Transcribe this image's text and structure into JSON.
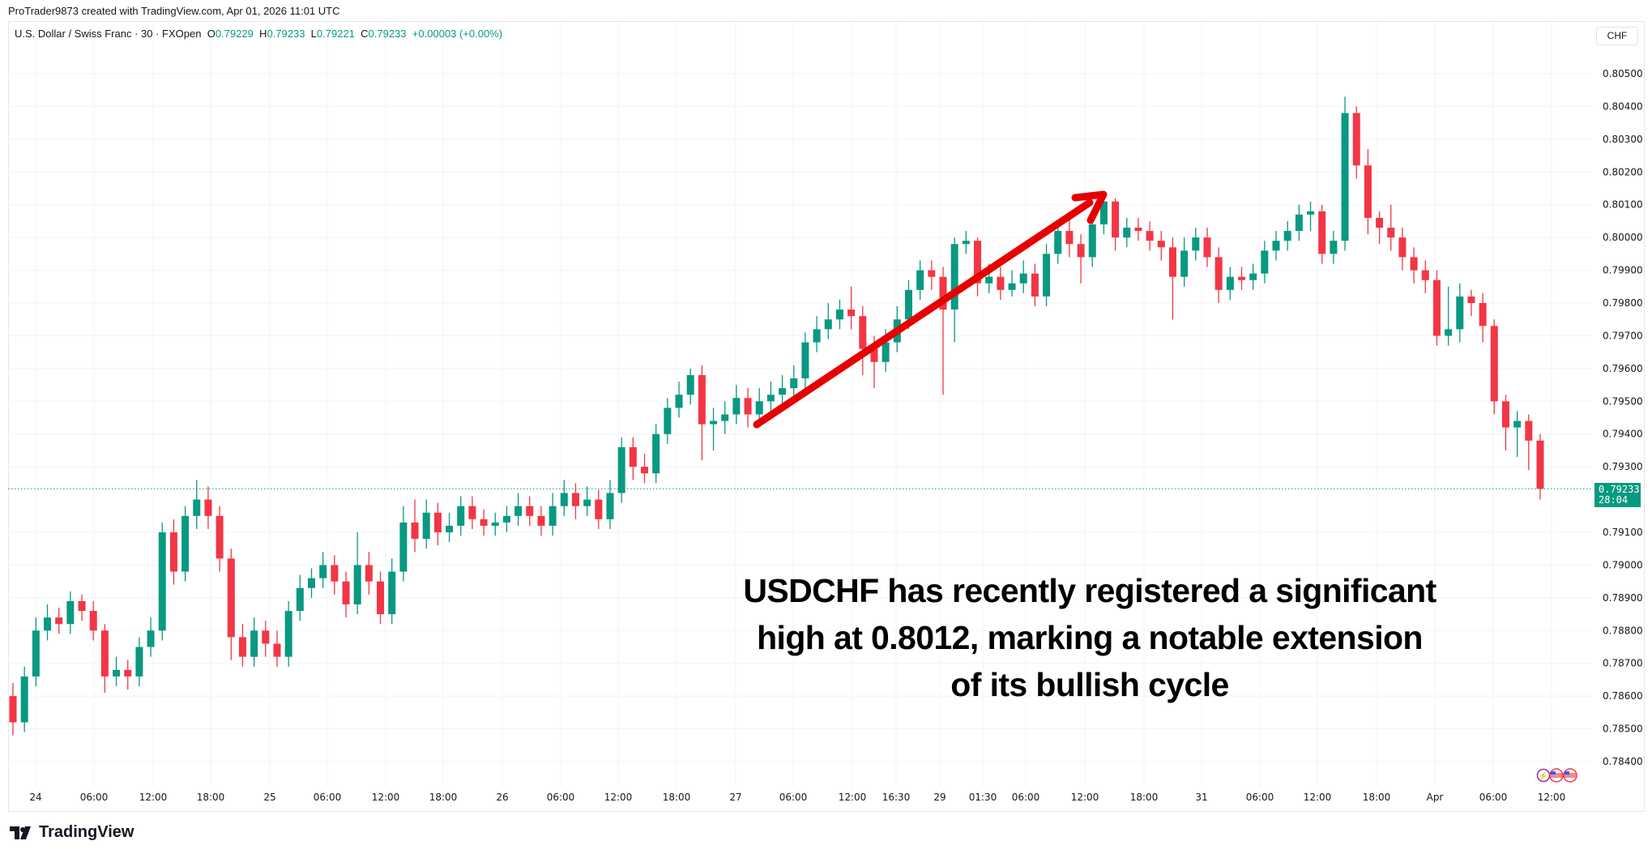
{
  "header": {
    "credit": "ProTrader9873 created with TradingView.com, Apr 01, 2026 11:01 UTC",
    "symbol": "U.S. Dollar / Swiss Franc · 30 · FXOpen",
    "o_label": "O",
    "o": "0.79229",
    "h_label": "H",
    "h": "0.79233",
    "l_label": "L",
    "l": "0.79221",
    "c_label": "C",
    "c": "0.79233",
    "change": "+0.00003 (+0.00%)"
  },
  "currency": "CHF",
  "last_price": {
    "price": "0.79233",
    "countdown": "28:04"
  },
  "annotation": {
    "lines": [
      "USDCHF has recently registered a significant",
      "high at 0.8012, marking a notable extension",
      "of its bullish cycle"
    ]
  },
  "footer": {
    "logo_text": "TradingView"
  },
  "colors": {
    "up": "#089981",
    "down": "#f23645",
    "arrow": "#e60000",
    "grid": "#f0f3fa"
  },
  "chart_data": {
    "type": "candlestick",
    "interval": "30",
    "ylim": [
      0.7838,
      0.8058
    ],
    "y_ticks": [
      "0.80500",
      "0.80400",
      "0.80300",
      "0.80200",
      "0.80100",
      "0.80000",
      "0.79900",
      "0.79800",
      "0.79700",
      "0.79600",
      "0.79500",
      "0.79400",
      "0.79300",
      "0.79100",
      "0.79000",
      "0.78900",
      "0.78800",
      "0.78700",
      "0.78600",
      "0.78500",
      "0.78400"
    ],
    "x_ticks": [
      "24",
      "06:00",
      "12:00",
      "18:00",
      "25",
      "06:00",
      "12:00",
      "18:00",
      "26",
      "06:00",
      "12:00",
      "18:00",
      "27",
      "06:00",
      "12:00",
      "16:30",
      "29",
      "01:30",
      "06:00",
      "12:00",
      "18:00",
      "31",
      "06:00",
      "12:00",
      "18:00",
      "Apr",
      "06:00",
      "12:00"
    ],
    "first_open": 0.786,
    "close": [
      0.7852,
      0.7866,
      0.788,
      0.7884,
      0.7882,
      0.7889,
      0.7886,
      0.788,
      0.7866,
      0.7868,
      0.7866,
      0.7875,
      0.788,
      0.791,
      0.7898,
      0.7915,
      0.792,
      0.7915,
      0.7902,
      0.7878,
      0.7872,
      0.788,
      0.7876,
      0.7872,
      0.7886,
      0.7893,
      0.7896,
      0.79,
      0.7895,
      0.7888,
      0.79,
      0.7895,
      0.7885,
      0.7898,
      0.7913,
      0.7908,
      0.7916,
      0.791,
      0.7912,
      0.7918,
      0.7914,
      0.7912,
      0.7913,
      0.7915,
      0.7918,
      0.7915,
      0.7912,
      0.7918,
      0.7922,
      0.7918,
      0.792,
      0.7914,
      0.7922,
      0.7936,
      0.793,
      0.7928,
      0.794,
      0.7948,
      0.7952,
      0.7958,
      0.7943,
      0.7944,
      0.7946,
      0.7951,
      0.7946,
      0.795,
      0.7952,
      0.7954,
      0.7957,
      0.7968,
      0.7972,
      0.7975,
      0.7978,
      0.7976,
      0.7966,
      0.7962,
      0.7968,
      0.7975,
      0.7984,
      0.799,
      0.7988,
      0.7978,
      0.7998,
      0.7999,
      0.7986,
      0.7988,
      0.7984,
      0.7986,
      0.7989,
      0.7982,
      0.7995,
      0.8002,
      0.7998,
      0.7994,
      0.8004,
      0.8011,
      0.8,
      0.8003,
      0.8002,
      0.7999,
      0.7997,
      0.7988,
      0.7996,
      0.8,
      0.7994,
      0.7984,
      0.7988,
      0.7987,
      0.7989,
      0.7996,
      0.7999,
      0.8002,
      0.8007,
      0.8008,
      0.7995,
      0.7999,
      0.8038,
      0.8022,
      0.8006,
      0.8003,
      0.8,
      0.7994,
      0.799,
      0.7987,
      0.797,
      0.7972,
      0.7982,
      0.798,
      0.7973,
      0.795,
      0.7942,
      0.7944,
      0.7938,
      0.79233
    ],
    "high": [
      0.7864,
      0.7869,
      0.7884,
      0.7888,
      0.7887,
      0.7892,
      0.7891,
      0.7889,
      0.7882,
      0.7872,
      0.7871,
      0.7878,
      0.7884,
      0.7913,
      0.7914,
      0.7918,
      0.7926,
      0.7924,
      0.7918,
      0.7905,
      0.7882,
      0.7884,
      0.7883,
      0.788,
      0.7889,
      0.7897,
      0.7899,
      0.7904,
      0.7903,
      0.7898,
      0.791,
      0.7904,
      0.7898,
      0.7902,
      0.7918,
      0.792,
      0.792,
      0.7919,
      0.7916,
      0.7921,
      0.7921,
      0.7917,
      0.7916,
      0.7918,
      0.7922,
      0.7921,
      0.7918,
      0.7922,
      0.7926,
      0.7925,
      0.7924,
      0.7923,
      0.7926,
      0.7939,
      0.7939,
      0.7934,
      0.7943,
      0.7951,
      0.7956,
      0.796,
      0.7961,
      0.7948,
      0.795,
      0.7955,
      0.7954,
      0.7954,
      0.7956,
      0.7958,
      0.7961,
      0.7971,
      0.7976,
      0.798,
      0.7981,
      0.7985,
      0.7979,
      0.797,
      0.7972,
      0.7979,
      0.7987,
      0.7993,
      0.7993,
      0.7991,
      0.8,
      0.8002,
      0.8,
      0.7992,
      0.7991,
      0.799,
      0.7993,
      0.7992,
      0.7998,
      0.8005,
      0.8006,
      0.8001,
      0.8007,
      0.8013,
      0.8012,
      0.8006,
      0.8006,
      0.8005,
      0.8002,
      0.8,
      0.8,
      0.8003,
      0.8003,
      0.7997,
      0.7991,
      0.7991,
      0.7992,
      0.7999,
      0.8002,
      0.8005,
      0.801,
      0.8011,
      0.801,
      0.8002,
      0.8043,
      0.804,
      0.8027,
      0.8008,
      0.801,
      0.8003,
      0.7997,
      0.7993,
      0.799,
      0.7985,
      0.7986,
      0.7984,
      0.7983,
      0.7975,
      0.7952,
      0.7947,
      0.7946,
      0.794
    ],
    "low": [
      0.7848,
      0.7849,
      0.7863,
      0.7877,
      0.7879,
      0.7879,
      0.7883,
      0.7877,
      0.7861,
      0.7863,
      0.7862,
      0.7863,
      0.7872,
      0.7877,
      0.7894,
      0.7895,
      0.7911,
      0.7911,
      0.7898,
      0.7871,
      0.7869,
      0.7869,
      0.7872,
      0.7869,
      0.7869,
      0.7883,
      0.789,
      0.7893,
      0.7891,
      0.7884,
      0.7885,
      0.7891,
      0.7882,
      0.7882,
      0.7895,
      0.7904,
      0.7905,
      0.7906,
      0.7907,
      0.7909,
      0.7911,
      0.7909,
      0.7909,
      0.791,
      0.7912,
      0.7912,
      0.7909,
      0.7909,
      0.7915,
      0.7914,
      0.7915,
      0.7911,
      0.7911,
      0.7919,
      0.7926,
      0.7925,
      0.7925,
      0.7937,
      0.7945,
      0.7949,
      0.7932,
      0.7935,
      0.794,
      0.7943,
      0.7942,
      0.7943,
      0.7947,
      0.7949,
      0.7951,
      0.7954,
      0.7965,
      0.7969,
      0.7972,
      0.7972,
      0.7958,
      0.7954,
      0.7959,
      0.7965,
      0.7972,
      0.7981,
      0.7984,
      0.7952,
      0.7968,
      0.7995,
      0.7982,
      0.7983,
      0.7981,
      0.7982,
      0.7983,
      0.7979,
      0.7979,
      0.7992,
      0.7994,
      0.7986,
      0.7991,
      0.8001,
      0.7996,
      0.7997,
      0.7999,
      0.7996,
      0.7993,
      0.7975,
      0.7985,
      0.7993,
      0.7991,
      0.798,
      0.7981,
      0.7984,
      0.7984,
      0.7986,
      0.7993,
      0.7996,
      0.7999,
      0.8002,
      0.7992,
      0.7992,
      0.7996,
      0.8018,
      0.8001,
      0.7998,
      0.7996,
      0.799,
      0.7986,
      0.7983,
      0.7967,
      0.7967,
      0.7968,
      0.7976,
      0.7968,
      0.7946,
      0.7935,
      0.7933,
      0.7929,
      0.792
    ]
  }
}
